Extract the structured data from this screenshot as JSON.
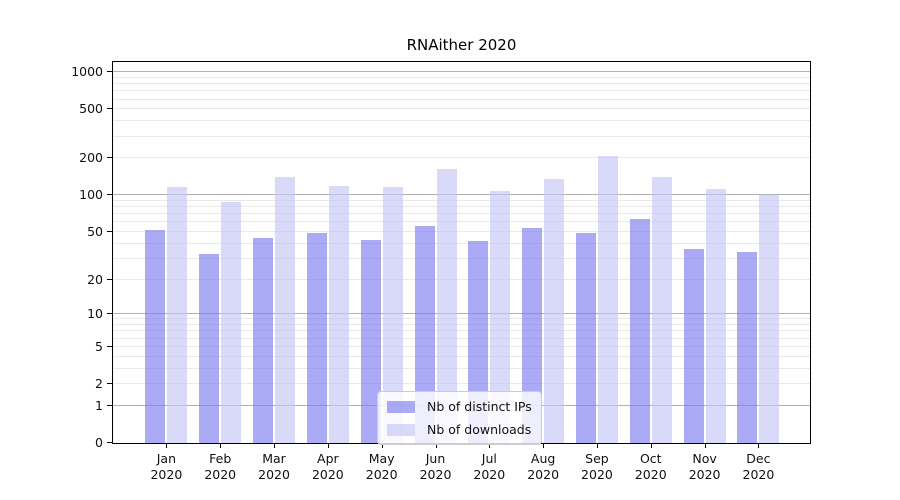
{
  "chart_data": {
    "type": "bar",
    "title": "RNAither 2020",
    "categories": [
      "Jan 2020",
      "Feb 2020",
      "Mar 2020",
      "Apr 2020",
      "May 2020",
      "Jun 2020",
      "Jul 2020",
      "Aug 2020",
      "Sep 2020",
      "Oct 2020",
      "Nov 2020",
      "Dec 2020"
    ],
    "series": [
      {
        "name": "Nb of distinct IPs",
        "color": "rgba(124,124,240,0.65)",
        "values": [
          52,
          33,
          45,
          49,
          43,
          56,
          42,
          54,
          49,
          64,
          36,
          34
        ]
      },
      {
        "name": "Nb of downloads",
        "color": "rgba(196,196,246,0.65)",
        "values": [
          117,
          89,
          140,
          119,
          116,
          165,
          108,
          137,
          210,
          141,
          113,
          100
        ]
      }
    ],
    "xlabel": "",
    "ylabel": "",
    "y_axis": {
      "scale": "log1p",
      "max_value": 1212,
      "ticks": [
        0,
        1,
        2,
        5,
        10,
        20,
        50,
        100,
        200,
        500,
        1000
      ],
      "grid_major": [
        1,
        10,
        100,
        1000
      ],
      "grid_minor": [
        2,
        3,
        4,
        5,
        6,
        7,
        8,
        9,
        20,
        30,
        40,
        50,
        60,
        70,
        80,
        90,
        200,
        300,
        400,
        500,
        600,
        700,
        800,
        900
      ]
    },
    "legend_position": "lower-center",
    "grid": "on"
  },
  "colors": {
    "background": "#ffffff",
    "frame": "#000000",
    "grid_major": "#b0b0b0",
    "grid_minor": "#e9e9e9",
    "bar_ips_solid": "#aaaaf3",
    "bar_downloads_solid": "#d9d9f8",
    "legend_border": "#cccccc"
  }
}
